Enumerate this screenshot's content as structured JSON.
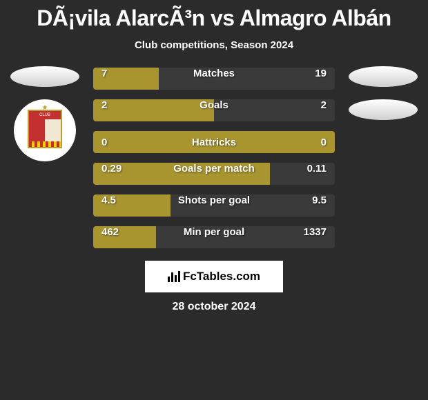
{
  "title": "DÃ¡vila AlarcÃ³n vs Almagro Albán",
  "subtitle": "Club competitions, Season 2024",
  "stats": [
    {
      "label": "Matches",
      "left_value": "7",
      "right_value": "19",
      "left_width_pct": 27,
      "background_type": "split"
    },
    {
      "label": "Goals",
      "left_value": "2",
      "right_value": "2",
      "left_width_pct": 50,
      "background_type": "split"
    },
    {
      "label": "Hattricks",
      "left_value": "0",
      "right_value": "0",
      "left_width_pct": 100,
      "background_type": "full"
    },
    {
      "label": "Goals per match",
      "left_value": "0.29",
      "right_value": "0.11",
      "left_width_pct": 73,
      "background_type": "split"
    },
    {
      "label": "Shots per goal",
      "left_value": "4.5",
      "right_value": "9.5",
      "left_width_pct": 32,
      "background_type": "split"
    },
    {
      "label": "Min per goal",
      "left_value": "462",
      "right_value": "1337",
      "left_width_pct": 26,
      "background_type": "split"
    }
  ],
  "colors": {
    "bar_active": "#a89530",
    "bar_inactive": "#3a3a3a",
    "background": "#2b2b2b",
    "text": "#ffffff"
  },
  "footer": {
    "brand_label": "FcTables.com",
    "date": "28 october 2024"
  },
  "crest_text": "CLUB"
}
